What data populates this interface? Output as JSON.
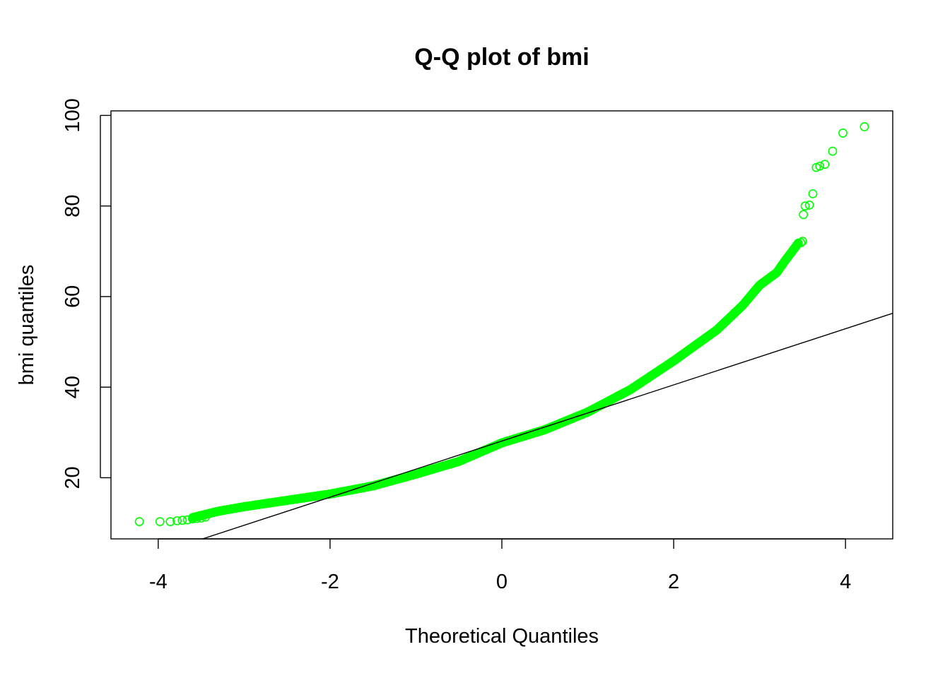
{
  "chart_data": {
    "type": "scatter",
    "title": "Q-Q plot of bmi",
    "xlabel": "Theoretical Quantiles",
    "ylabel": "bmi quantiles",
    "xlim": [
      -4.55,
      4.55
    ],
    "ylim": [
      6.5,
      101
    ],
    "xticks": [
      -4,
      -2,
      0,
      2,
      4
    ],
    "xtick_labels": [
      "-4",
      "-2",
      "0",
      "2",
      "4"
    ],
    "yticks": [
      20,
      40,
      60,
      80,
      100
    ],
    "ytick_labels": [
      "20",
      "40",
      "60",
      "80",
      "100"
    ],
    "grid": false,
    "marker": "open-circle",
    "point_color": "#00ff00",
    "line_color": "#000000",
    "reference_line": {
      "slope": 6.2,
      "intercept": 28.1
    },
    "curve": [
      [
        -3.6,
        11.2
      ],
      [
        -3.3,
        12.6
      ],
      [
        -3.0,
        13.6
      ],
      [
        -2.5,
        15.0
      ],
      [
        -2.0,
        16.4
      ],
      [
        -1.5,
        18.2
      ],
      [
        -1.0,
        20.8
      ],
      [
        -0.5,
        23.6
      ],
      [
        0.0,
        27.7
      ],
      [
        0.5,
        30.6
      ],
      [
        1.0,
        34.5
      ],
      [
        1.5,
        39.5
      ],
      [
        2.0,
        45.8
      ],
      [
        2.5,
        52.6
      ],
      [
        2.8,
        58.0
      ],
      [
        3.0,
        62.5
      ],
      [
        3.2,
        65.3
      ],
      [
        3.3,
        68.0
      ],
      [
        3.4,
        70.5
      ],
      [
        3.45,
        71.8
      ]
    ],
    "tail_points": [
      [
        -4.22,
        10.3
      ],
      [
        -3.98,
        10.3
      ],
      [
        -3.86,
        10.3
      ],
      [
        -3.78,
        10.5
      ],
      [
        -3.72,
        10.6
      ],
      [
        -3.66,
        10.7
      ],
      [
        -3.6,
        10.9
      ],
      [
        -3.55,
        11.0
      ],
      [
        -3.5,
        11.1
      ],
      [
        -3.45,
        11.3
      ],
      [
        3.48,
        71.9
      ],
      [
        3.5,
        72.2
      ],
      [
        3.51,
        78.1
      ],
      [
        3.53,
        80.0
      ],
      [
        3.58,
        80.2
      ],
      [
        3.62,
        82.7
      ],
      [
        3.66,
        88.5
      ],
      [
        3.7,
        88.8
      ],
      [
        3.76,
        89.2
      ],
      [
        3.85,
        92.1
      ],
      [
        3.97,
        96.1
      ],
      [
        4.22,
        97.5
      ]
    ]
  }
}
